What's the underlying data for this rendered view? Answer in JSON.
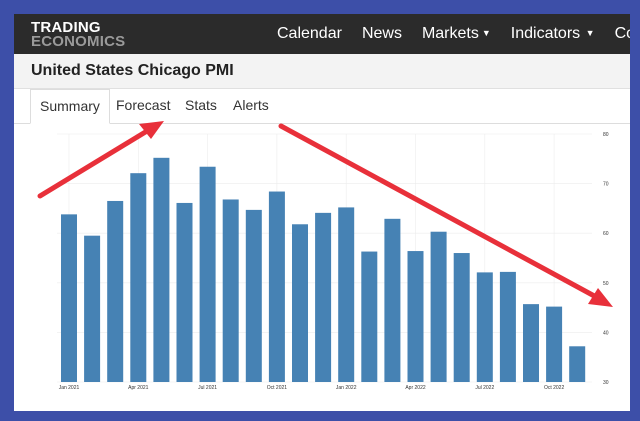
{
  "nav": {
    "logo_line1": "TRADING",
    "logo_line2": "ECONOMICS",
    "items": [
      {
        "label": "Calendar",
        "dropdown": false
      },
      {
        "label": "News",
        "dropdown": false
      },
      {
        "label": "Markets",
        "dropdown": true
      },
      {
        "label": "Indicators",
        "dropdown": true
      },
      {
        "label": "Cou",
        "dropdown": false
      }
    ]
  },
  "page": {
    "title": "United States Chicago PMI"
  },
  "tabs": [
    {
      "label": "Summary",
      "active": true
    },
    {
      "label": "Forecast",
      "active": false
    },
    {
      "label": "Stats",
      "active": false
    },
    {
      "label": "Alerts",
      "active": false
    }
  ],
  "colors": {
    "bar": "#4682b4",
    "arrow": "#e8303a",
    "background": "#3d4fa8"
  },
  "chart_data": {
    "type": "bar",
    "xticks": [
      "Jan 2021",
      "Apr 2021",
      "Jul 2021",
      "Oct 2021",
      "Jan 2022",
      "Apr 2022",
      "Jul 2022",
      "Oct 2022"
    ],
    "yticks": [
      "30",
      "40",
      "50",
      "60",
      "70",
      "80"
    ],
    "ylim": [
      30,
      80
    ],
    "values": [
      63.8,
      59.5,
      66.5,
      72.1,
      75.2,
      66.1,
      73.4,
      66.8,
      64.7,
      68.4,
      61.8,
      64.1,
      65.2,
      56.3,
      62.9,
      56.4,
      60.3,
      56.0,
      52.1,
      52.2,
      45.7,
      45.2,
      37.2
    ],
    "tick_positions": [
      0,
      3,
      6,
      9,
      12,
      15,
      18,
      21
    ],
    "grid": true,
    "annotations": [
      "up-arrow",
      "down-arrow"
    ]
  }
}
